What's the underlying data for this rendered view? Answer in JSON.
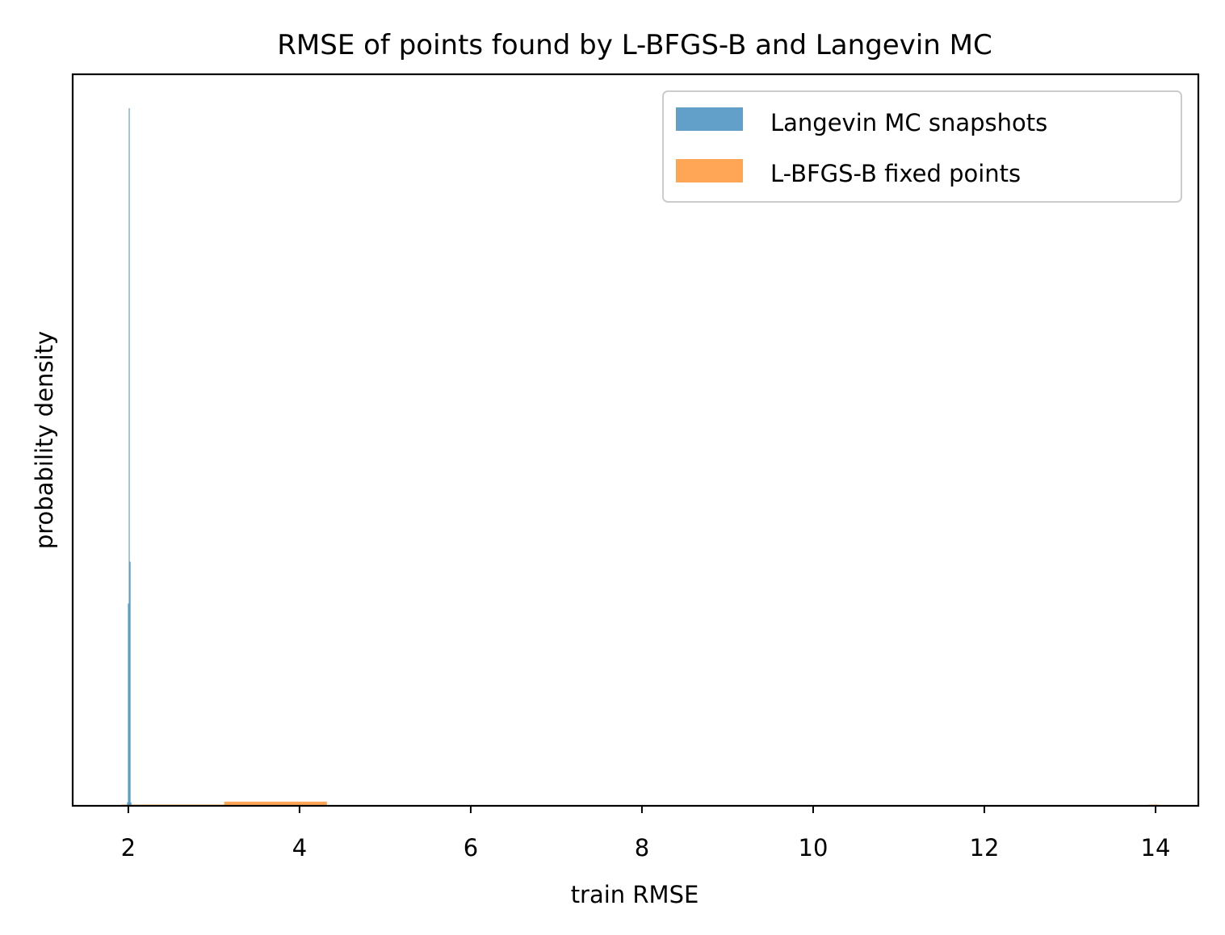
{
  "chart_data": {
    "type": "histogram",
    "title": "RMSE of points found by L-BFGS-B and Langevin MC",
    "xlabel": "train RMSE",
    "ylabel": "probability density",
    "xlim": [
      1.35,
      14.5
    ],
    "ylim": [
      0,
      1.0
    ],
    "x_ticks": [
      2,
      4,
      6,
      8,
      10,
      12,
      14
    ],
    "y_ticks_shown": false,
    "legend_position": "top-right",
    "series": [
      {
        "name": "Langevin MC snapshots",
        "color": "#1f77b4",
        "alpha": 0.7,
        "bins": [
          {
            "x0": 1.985,
            "x1": 1.995,
            "height": 0.005
          },
          {
            "x0": 1.995,
            "x1": 2.005,
            "height": 0.29
          },
          {
            "x0": 2.005,
            "x1": 2.015,
            "height": 1.0
          },
          {
            "x0": 2.015,
            "x1": 2.025,
            "height": 0.35
          },
          {
            "x0": 2.025,
            "x1": 2.035,
            "height": 0.005
          }
        ]
      },
      {
        "name": "L-BFGS-B fixed points",
        "color": "#ff7f0e",
        "alpha": 0.7,
        "bins": [
          {
            "x0": 1.92,
            "x1": 3.12,
            "height": 0.0015
          },
          {
            "x0": 3.12,
            "x1": 4.32,
            "height": 0.006
          },
          {
            "x0": 4.32,
            "x1": 5.52,
            "height": 0.0
          },
          {
            "x0": 5.52,
            "x1": 6.72,
            "height": 0.0
          },
          {
            "x0": 6.72,
            "x1": 7.92,
            "height": 0.0
          },
          {
            "x0": 7.92,
            "x1": 9.12,
            "height": 0.0
          },
          {
            "x0": 9.12,
            "x1": 10.32,
            "height": 0.0
          },
          {
            "x0": 10.32,
            "x1": 11.52,
            "height": 0.0
          },
          {
            "x0": 11.52,
            "x1": 12.72,
            "height": 0.0
          },
          {
            "x0": 12.72,
            "x1": 13.92,
            "height": 0.0
          },
          {
            "x0": 13.92,
            "x1": 14.04,
            "height": 0.0002
          }
        ]
      }
    ]
  }
}
